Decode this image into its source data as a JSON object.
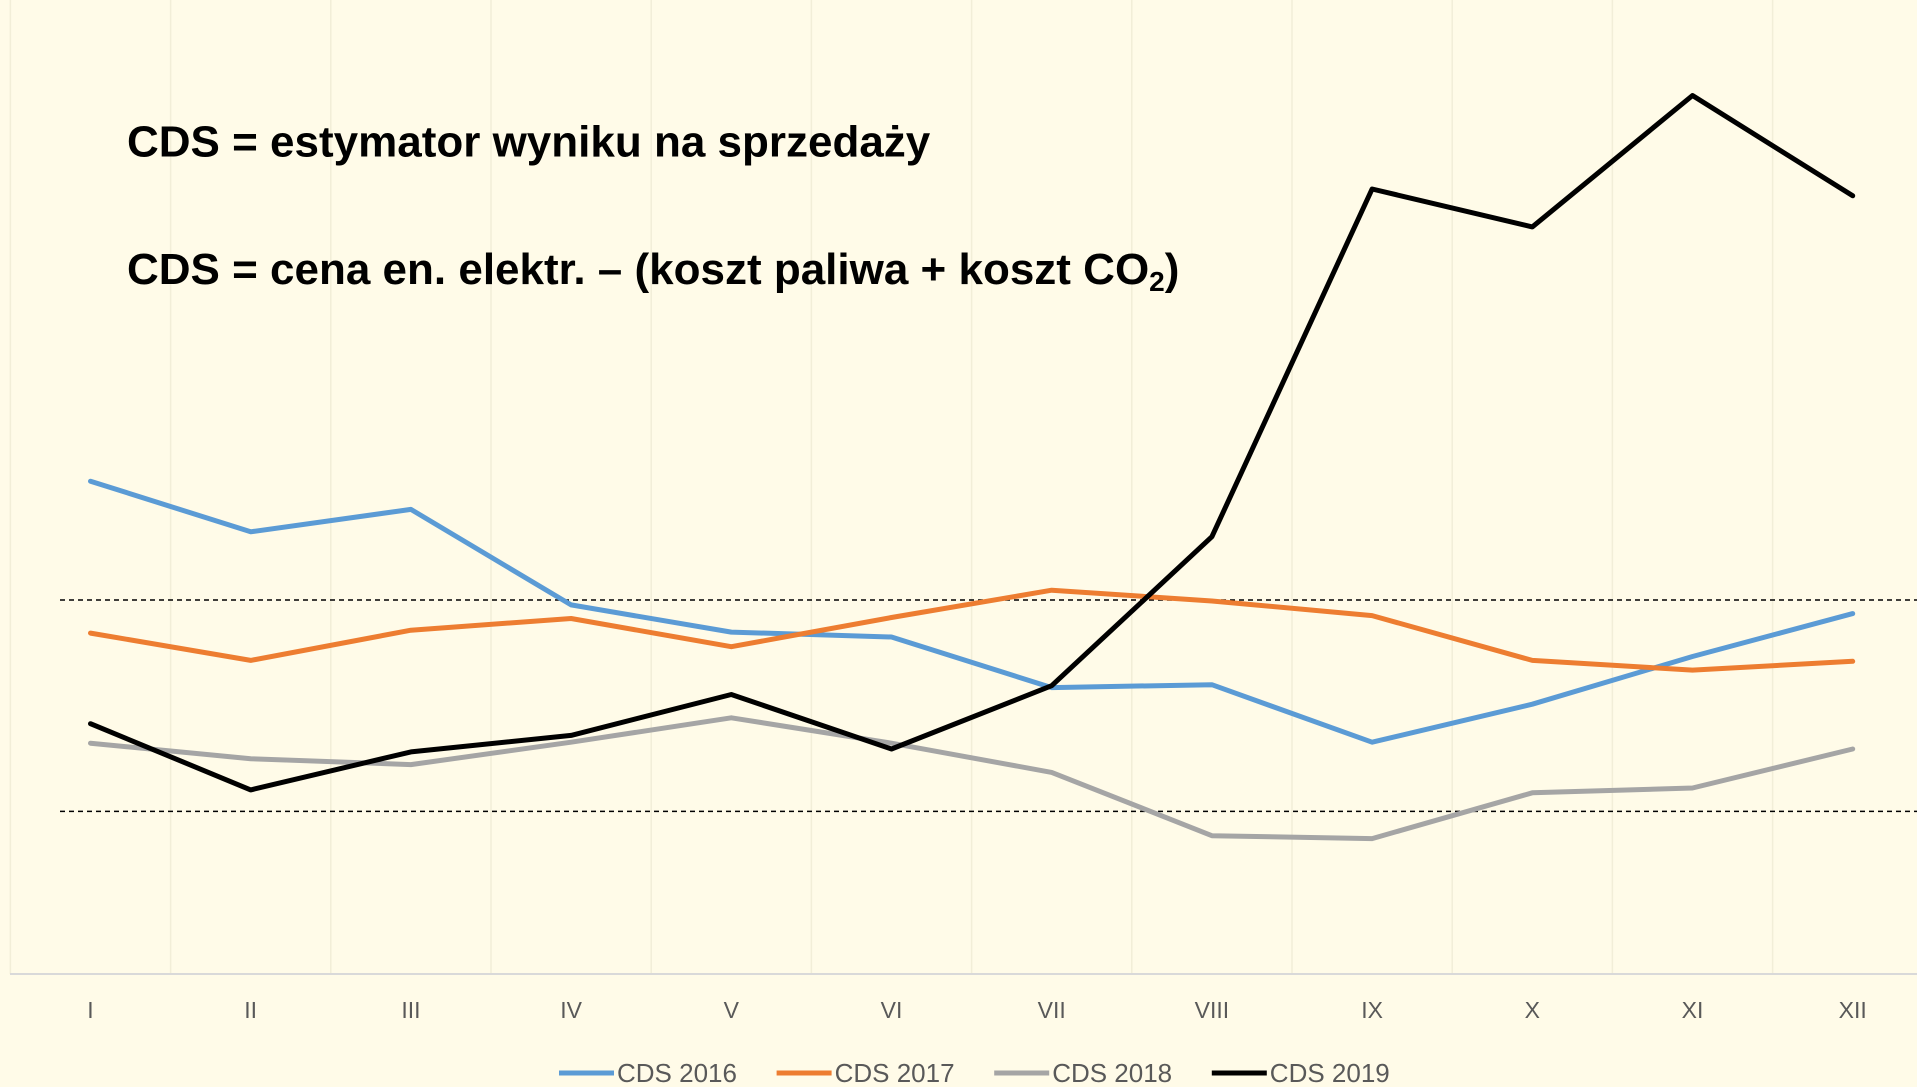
{
  "chart_data": {
    "type": "line",
    "annotations": [
      "CDS = estymator wyniku na sprzedaży",
      [
        "CDS = cena en. elektr. – (koszt paliwa + koszt CO",
        "2",
        ")"
      ]
    ],
    "categories": [
      "I",
      "II",
      "III",
      "IV",
      "V",
      "VI",
      "VII",
      "VIII",
      "IX",
      "X",
      "XI",
      "XII"
    ],
    "series": [
      {
        "name": "CDS 2016",
        "color": "#5b9bd5",
        "values": [
          50.6,
          45.4,
          47.7,
          37.9,
          35.1,
          34.6,
          29.4,
          29.7,
          23.8,
          27.7,
          32.6,
          37.0
        ]
      },
      {
        "name": "CDS 2017",
        "color": "#ed7d31",
        "values": [
          35.0,
          32.2,
          35.3,
          36.5,
          33.6,
          36.6,
          39.4,
          38.3,
          36.8,
          32.2,
          31.2,
          32.1
        ]
      },
      {
        "name": "CDS 2018",
        "color": "#a5a5a5",
        "values": [
          23.7,
          22.1,
          21.5,
          23.8,
          26.3,
          23.7,
          20.7,
          14.2,
          13.9,
          18.6,
          19.1,
          23.1
        ]
      },
      {
        "name": "CDS 2019",
        "color": "#000000",
        "values": [
          25.7,
          18.9,
          22.8,
          24.5,
          28.7,
          23.1,
          29.6,
          44.9,
          80.6,
          76.7,
          90.2,
          79.9
        ]
      }
    ],
    "reference_lines": [
      38.4,
      16.7
    ],
    "ylim": [
      0,
      100
    ],
    "legend": "bottom"
  }
}
